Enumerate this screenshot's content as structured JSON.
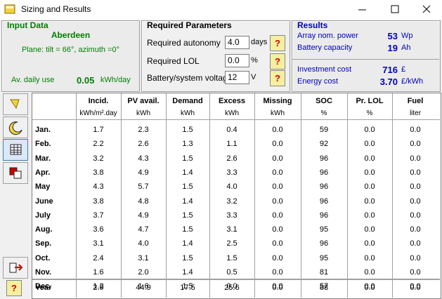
{
  "window": {
    "title": "Sizing and Results"
  },
  "input_data": {
    "title": "Input Data",
    "site": "Aberdeen",
    "plane": "Plane: tilt = 66°, azimuth =0°",
    "daily_use_label": "Av. daily use",
    "daily_use_value": "0.05",
    "daily_use_unit": "kWh/day"
  },
  "required_parameters": {
    "title": "Required Parameters",
    "rows": [
      {
        "label": "Required autonomy",
        "value": "4.0",
        "unit": "days",
        "help": "?"
      },
      {
        "label": "Required LOL",
        "value": "0.0",
        "unit": "%",
        "help": "?"
      },
      {
        "label": "Battery/system voltage",
        "value": "12",
        "unit": "V",
        "help": "?"
      }
    ]
  },
  "results": {
    "title": "Results",
    "rows": [
      {
        "label": "Array nom. power",
        "value": "53",
        "unit": "Wp"
      },
      {
        "label": "Battery capacity",
        "value": "19",
        "unit": "Ah"
      },
      {
        "label": "Investment cost",
        "value": "716",
        "unit": "£"
      },
      {
        "label": "Energy cost",
        "value": "3.70",
        "unit": "£/kWh"
      }
    ]
  },
  "table": {
    "columns": [
      {
        "name": "Incid.",
        "unit": "kWh/m².day"
      },
      {
        "name": "PV avail.",
        "unit": "kWh"
      },
      {
        "name": "Demand",
        "unit": "kWh"
      },
      {
        "name": "Excess",
        "unit": "kWh"
      },
      {
        "name": "Missing",
        "unit": "kWh"
      },
      {
        "name": "SOC",
        "unit": "%"
      },
      {
        "name": "Pr. LOL",
        "unit": "%"
      },
      {
        "name": "Fuel",
        "unit": "liter"
      }
    ],
    "rows": [
      {
        "label": "Jan.",
        "values": [
          "1.7",
          "2.3",
          "1.5",
          "0.4",
          "0.0",
          "59",
          "0.0",
          "0.0"
        ]
      },
      {
        "label": "Feb.",
        "values": [
          "2.2",
          "2.6",
          "1.3",
          "1.1",
          "0.0",
          "92",
          "0.0",
          "0.0"
        ]
      },
      {
        "label": "Mar.",
        "values": [
          "3.2",
          "4.3",
          "1.5",
          "2.6",
          "0.0",
          "96",
          "0.0",
          "0.0"
        ]
      },
      {
        "label": "Apr.",
        "values": [
          "3.8",
          "4.9",
          "1.4",
          "3.3",
          "0.0",
          "96",
          "0.0",
          "0.0"
        ]
      },
      {
        "label": "May",
        "values": [
          "4.3",
          "5.7",
          "1.5",
          "4.0",
          "0.0",
          "96",
          "0.0",
          "0.0"
        ]
      },
      {
        "label": "June",
        "values": [
          "3.8",
          "4.8",
          "1.4",
          "3.2",
          "0.0",
          "96",
          "0.0",
          "0.0"
        ]
      },
      {
        "label": "July",
        "values": [
          "3.7",
          "4.9",
          "1.5",
          "3.3",
          "0.0",
          "96",
          "0.0",
          "0.0"
        ]
      },
      {
        "label": "Aug.",
        "values": [
          "3.6",
          "4.7",
          "1.5",
          "3.1",
          "0.0",
          "95",
          "0.0",
          "0.0"
        ]
      },
      {
        "label": "Sep.",
        "values": [
          "3.1",
          "4.0",
          "1.4",
          "2.5",
          "0.0",
          "96",
          "0.0",
          "0.0"
        ]
      },
      {
        "label": "Oct.",
        "values": [
          "2.4",
          "3.1",
          "1.5",
          "1.5",
          "0.0",
          "95",
          "0.0",
          "0.0"
        ]
      },
      {
        "label": "Nov.",
        "values": [
          "1.6",
          "2.0",
          "1.4",
          "0.5",
          "0.0",
          "81",
          "0.0",
          "0.0"
        ]
      },
      {
        "label": "Dec.",
        "values": [
          "1.2",
          "1.6",
          "1.5",
          "0.0",
          "0.0",
          "57",
          "0.0",
          "0.0"
        ]
      }
    ],
    "total": {
      "label": "Year",
      "values": [
        "2.9",
        "44.9",
        "17.5",
        "25.6",
        "0.0",
        "88",
        "0.0",
        "0.0"
      ]
    }
  },
  "toolbar": {
    "help": "?"
  }
}
